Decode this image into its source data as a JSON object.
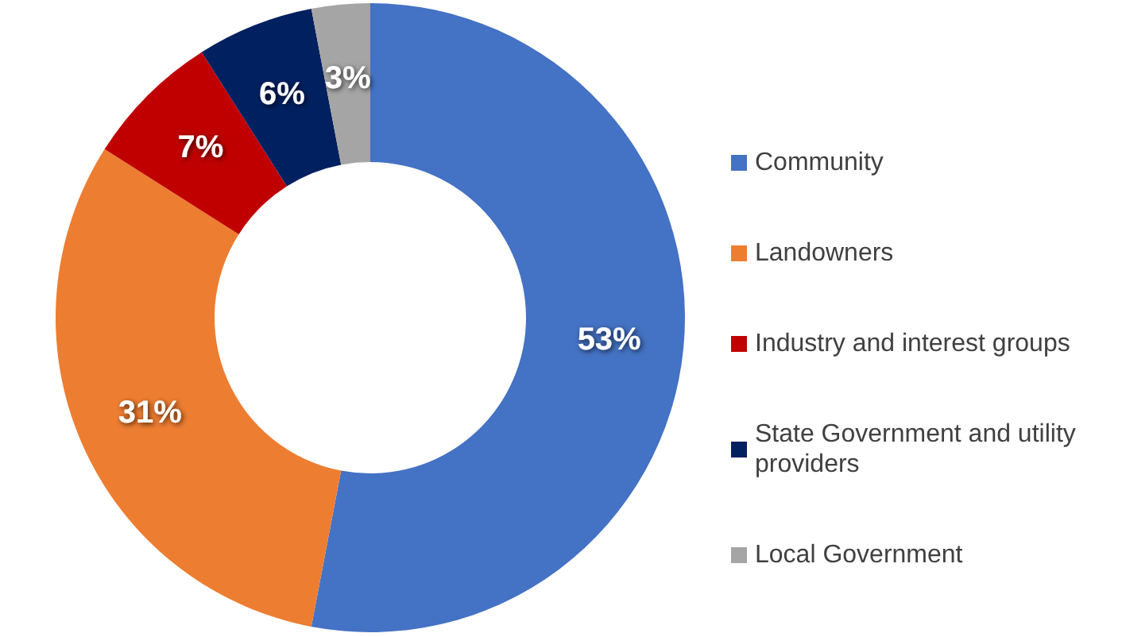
{
  "chart_data": {
    "type": "donut",
    "categories": [
      "Community",
      "Landowners",
      "Industry and interest groups",
      "State Government and utility providers",
      "Local Government"
    ],
    "values": [
      53,
      31,
      7,
      6,
      3
    ],
    "colors": [
      "#4472c4",
      "#ed7d31",
      "#c00000",
      "#002060",
      "#a5a5a5"
    ],
    "value_labels": [
      "53%",
      "31%",
      "7%",
      "6%",
      "3%"
    ],
    "legend": "right"
  }
}
